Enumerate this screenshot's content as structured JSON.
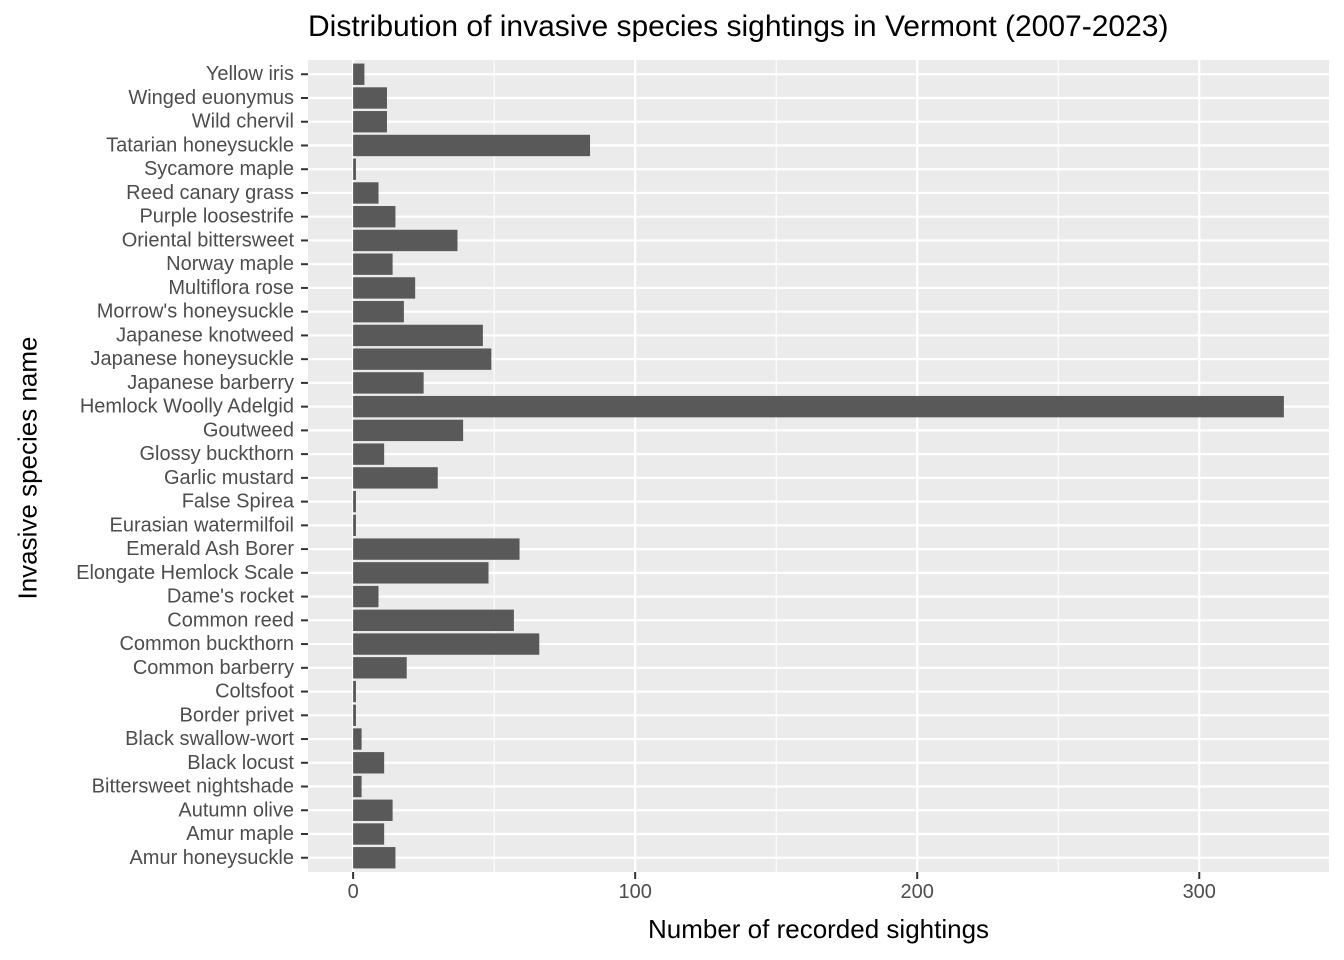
{
  "chart_data": {
    "type": "bar",
    "orientation": "horizontal",
    "title": "Distribution of invasive species sightings in Vermont (2007-2023)",
    "xlabel": "Number of recorded sightings",
    "ylabel": "Invasive species name",
    "xlim": [
      -16,
      346
    ],
    "xticks": [
      0,
      100,
      200,
      300
    ],
    "grid": true,
    "background": "#ebebeb",
    "bar_color": "#595959",
    "categories": [
      "Yellow iris",
      "Winged euonymus",
      "Wild chervil",
      "Tatarian honeysuckle",
      "Sycamore maple",
      "Reed canary grass",
      "Purple loosestrife",
      "Oriental bittersweet",
      "Norway maple",
      "Multiflora rose",
      "Morrow's honeysuckle",
      "Japanese knotweed",
      "Japanese honeysuckle",
      "Japanese barberry",
      "Hemlock Woolly Adelgid",
      "Goutweed",
      "Glossy buckthorn",
      "Garlic mustard",
      "False Spirea",
      "Eurasian watermilfoil",
      "Emerald Ash Borer",
      "Elongate Hemlock Scale",
      "Dame's rocket",
      "Common reed",
      "Common buckthorn",
      "Common barberry",
      "Coltsfoot",
      "Border privet",
      "Black swallow-wort",
      "Black locust",
      "Bittersweet nightshade",
      "Autumn olive",
      "Amur maple",
      "Amur honeysuckle"
    ],
    "values": [
      4,
      12,
      12,
      84,
      1,
      9,
      15,
      37,
      14,
      22,
      18,
      46,
      49,
      25,
      330,
      39,
      11,
      30,
      1,
      1,
      59,
      48,
      9,
      57,
      66,
      19,
      1,
      1,
      3,
      11,
      3,
      14,
      11,
      15
    ]
  }
}
